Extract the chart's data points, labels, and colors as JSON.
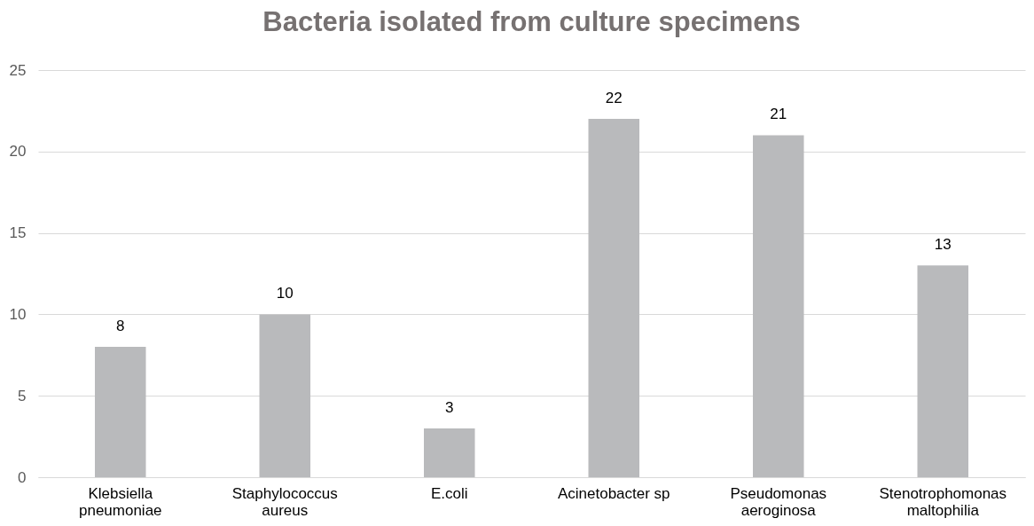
{
  "chart_data": {
    "type": "bar",
    "title": "Bacteria isolated from culture specimens",
    "categories": [
      "Klebsiella pneumoniae",
      "Staphylococcus aureus",
      "E.coli",
      "Acinetobacter sp",
      "Pseudomonas aeroginosa",
      "Stenotrophomonas maltophilia"
    ],
    "values": [
      8,
      10,
      3,
      22,
      21,
      13
    ],
    "color": "#b9babc",
    "ylim": [
      0,
      25
    ],
    "yticks": [
      0,
      5,
      10,
      15,
      20,
      25
    ],
    "grid": "y",
    "data_labels": true
  }
}
